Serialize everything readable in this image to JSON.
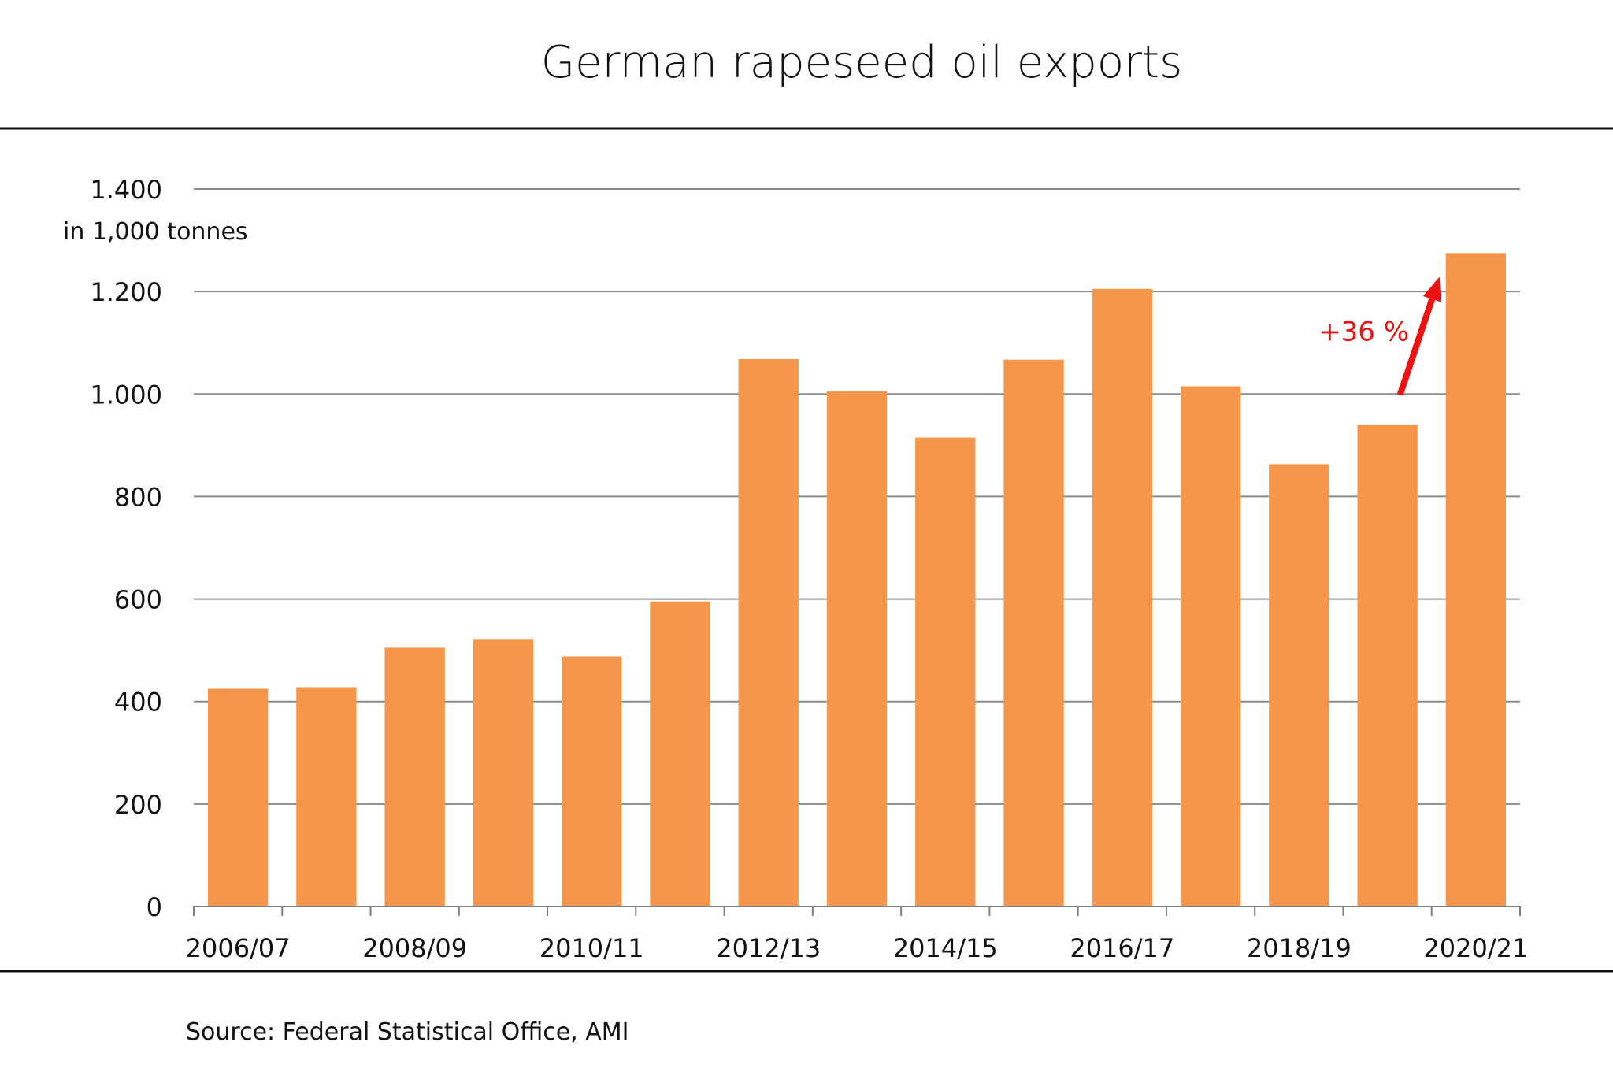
{
  "colors": {
    "bar": "#f5964a",
    "grid": "#8c8c8c",
    "axis": "#7f7f7f",
    "rule": "#111111",
    "annotation": "#ee1111"
  },
  "source": "Source: Federal Statistical Office, AMI",
  "chart_data": {
    "type": "bar",
    "title": "German rapeseed oil exports",
    "ylabel": "in 1,000 tonnes",
    "xlabel": "",
    "ylim": [
      0,
      1400
    ],
    "yticks": [
      0,
      200,
      400,
      600,
      800,
      1000,
      1200,
      1400
    ],
    "ytick_labels": [
      "0",
      "200",
      "400",
      "600",
      "800",
      "1.000",
      "1.200",
      "1.400"
    ],
    "categories": [
      "2006/07",
      "2007/08",
      "2008/09",
      "2009/10",
      "2010/11",
      "2011/12",
      "2012/13",
      "2013/14",
      "2014/15",
      "2015/16",
      "2016/17",
      "2017/18",
      "2018/19",
      "2019/20",
      "2020/21"
    ],
    "xtick_labels_shown": [
      "2006/07",
      "2008/09",
      "2010/11",
      "2012/13",
      "2014/15",
      "2016/17",
      "2018/19",
      "2020/21"
    ],
    "values": [
      425,
      428,
      505,
      522,
      488,
      595,
      1068,
      1005,
      915,
      1067,
      1205,
      1015,
      863,
      940,
      1275
    ],
    "grid": true,
    "legend": "none",
    "annotation": {
      "text": "+36 %",
      "from_category": "2019/20",
      "to_category": "2020/21"
    }
  }
}
